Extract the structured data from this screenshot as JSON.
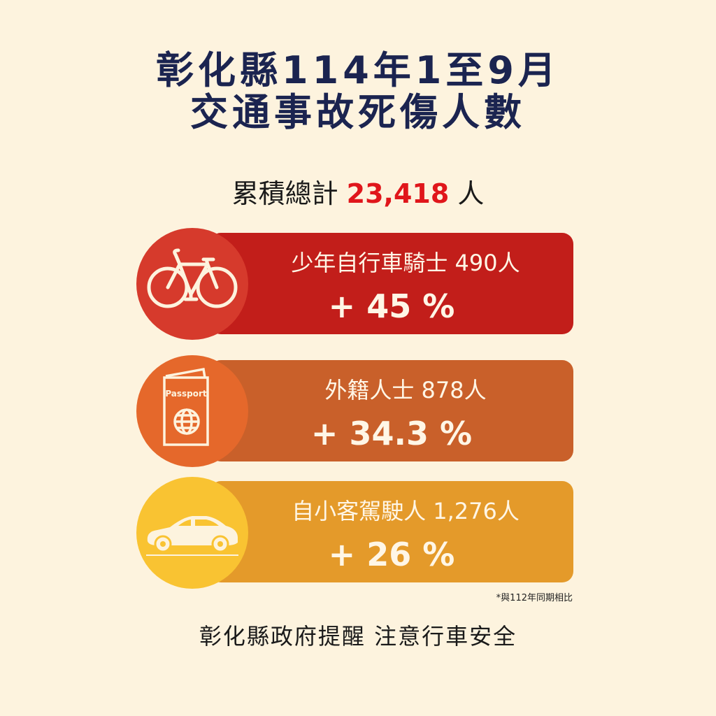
{
  "title": {
    "line1": "彰化縣114年1至9月",
    "line2": "交通事故死傷人數"
  },
  "total": {
    "label": "累積總計",
    "value": "23,418",
    "unit": "人"
  },
  "items": [
    {
      "label": "少年自行車騎士 490人",
      "change": "+ 45 %",
      "icon": "bicycle-icon",
      "bar_color": "#c21e1a",
      "circle_color": "#d63a2c"
    },
    {
      "label": "外籍人士 878人",
      "change": "+ 34.3 %",
      "icon": "passport-icon",
      "icon_text": "Passport",
      "bar_color": "#c9602a",
      "circle_color": "#e5682b"
    },
    {
      "label": "自小客駕駛人 1,276人",
      "change": "+ 26 %",
      "icon": "car-icon",
      "bar_color": "#e49a2a",
      "circle_color": "#f9c332"
    }
  ],
  "note": "*與112年同期相比",
  "footer": "彰化縣政府提醒 注意行車安全"
}
